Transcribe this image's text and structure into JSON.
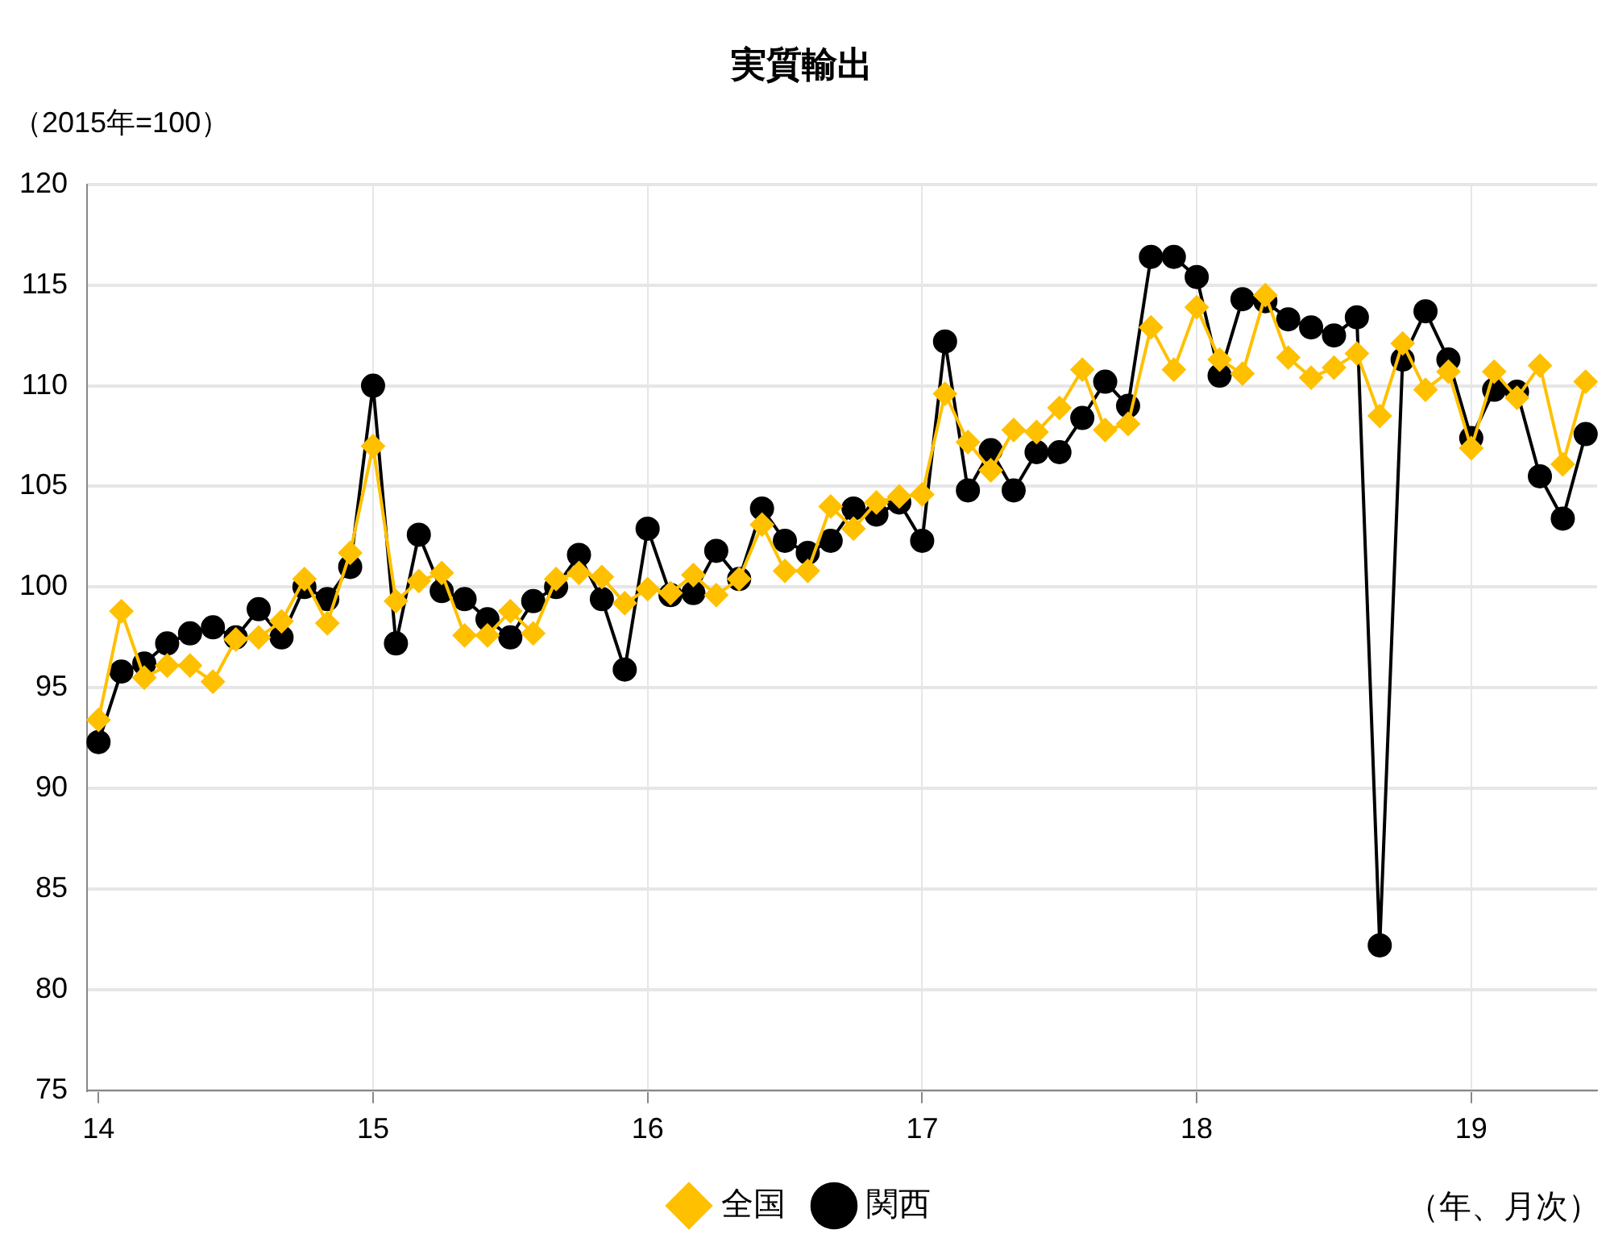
{
  "chart_data": {
    "type": "line",
    "title": "実質輸出",
    "ylabel": "（2015年=100）",
    "annotations": [
      "（年、月次）"
    ],
    "categories": [
      "14",
      null,
      null,
      null,
      null,
      null,
      null,
      null,
      null,
      null,
      null,
      null,
      "15",
      null,
      null,
      null,
      null,
      null,
      null,
      null,
      null,
      null,
      null,
      null,
      "16",
      null,
      null,
      null,
      null,
      null,
      null,
      null,
      null,
      null,
      null,
      null,
      "17",
      null,
      null,
      null,
      null,
      null,
      null,
      null,
      null,
      null,
      null,
      null,
      "18",
      null,
      null,
      null,
      null,
      null,
      null,
      null,
      null,
      null,
      null,
      null,
      "19",
      null,
      null,
      null,
      null,
      null
    ],
    "series": [
      {
        "name": "関西",
        "color": "#000000",
        "marker": "circle",
        "values": [
          92.3,
          95.8,
          96.2,
          97.2,
          97.7,
          98.0,
          97.5,
          98.9,
          97.5,
          100.0,
          99.4,
          101.0,
          110.0,
          97.2,
          102.6,
          99.8,
          99.4,
          98.4,
          97.5,
          99.3,
          100.0,
          101.6,
          99.4,
          95.9,
          102.9,
          99.6,
          99.7,
          101.8,
          100.4,
          103.9,
          102.3,
          101.7,
          102.3,
          103.9,
          103.6,
          104.2,
          102.3,
          112.2,
          104.8,
          106.8,
          104.8,
          106.7,
          106.7,
          108.4,
          110.2,
          109.0,
          116.4,
          116.4,
          115.4,
          110.5,
          114.3,
          114.2,
          113.3,
          112.9,
          112.5,
          113.4,
          82.2,
          111.3,
          113.7,
          111.3,
          107.4,
          109.8,
          109.7,
          105.5,
          103.4,
          107.6
        ]
      },
      {
        "name": "全国",
        "color": "#ffc000",
        "marker": "diamond",
        "values": [
          93.4,
          98.8,
          95.5,
          96.1,
          96.1,
          95.3,
          97.4,
          97.5,
          98.3,
          100.4,
          98.2,
          101.7,
          107.0,
          99.3,
          100.3,
          100.7,
          97.6,
          97.6,
          98.8,
          97.7,
          100.4,
          100.7,
          100.5,
          99.2,
          99.9,
          99.7,
          100.6,
          99.6,
          100.4,
          103.1,
          100.8,
          100.8,
          104.0,
          102.9,
          104.2,
          104.5,
          104.6,
          109.6,
          107.2,
          105.8,
          107.8,
          107.7,
          108.9,
          110.8,
          107.8,
          108.1,
          112.9,
          110.8,
          113.9,
          111.3,
          110.6,
          114.5,
          111.4,
          110.4,
          110.9,
          111.6,
          108.5,
          112.1,
          109.8,
          110.7,
          106.9,
          110.7,
          109.4,
          111.0,
          106.1,
          110.2
        ]
      }
    ],
    "ylim": [
      75,
      120
    ],
    "yticks": [
      75,
      80,
      85,
      90,
      95,
      100,
      105,
      110,
      115,
      120
    ],
    "grid": true,
    "legend": "bottom",
    "line_style": "solid"
  }
}
